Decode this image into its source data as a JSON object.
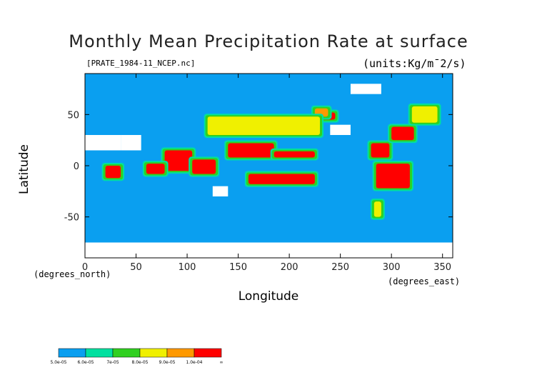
{
  "chart_data": {
    "type": "heatmap",
    "title": "Monthly Mean Precipitation Rate at surface",
    "subtitle": "[PRATE_1984-11_NCEP.nc]",
    "units": "(units:Kg/m¯2/s)",
    "xlabel": "Longitude",
    "ylabel": "Latitude",
    "x_unit": "(degrees_east)",
    "y_unit": "(degrees_north)",
    "xlim": [
      0,
      360
    ],
    "ylim": [
      -90,
      90
    ],
    "x_ticks": [
      0,
      50,
      100,
      150,
      200,
      250,
      300,
      350
    ],
    "y_ticks": [
      -50,
      0,
      50
    ],
    "colorbar": {
      "levels": [
        "5.0e-05",
        "6.0e-05",
        "7e-05",
        "8.0e-05",
        "9.0e-05",
        "1.0e-04",
        "∞"
      ],
      "colors": [
        "#0a9ff0",
        "#00e0a0",
        "#30d020",
        "#f0f000",
        "#ff9900",
        "#ff0000"
      ]
    },
    "background_color": "#0a9ff0",
    "missing_color": "#ffffff",
    "regions": [
      {
        "level": 5,
        "lon": [
          140,
          185
        ],
        "lat": [
          8,
          22
        ]
      },
      {
        "level": 5,
        "lon": [
          185,
          225
        ],
        "lat": [
          8,
          14
        ]
      },
      {
        "level": 5,
        "lon": [
          160,
          225
        ],
        "lat": [
          -18,
          -8
        ]
      },
      {
        "level": 5,
        "lon": [
          78,
          105
        ],
        "lat": [
          -5,
          15
        ]
      },
      {
        "level": 5,
        "lon": [
          60,
          78
        ],
        "lat": [
          -8,
          2
        ]
      },
      {
        "level": 5,
        "lon": [
          105,
          128
        ],
        "lat": [
          -8,
          6
        ]
      },
      {
        "level": 5,
        "lon": [
          20,
          35
        ],
        "lat": [
          -12,
          0
        ]
      },
      {
        "level": 5,
        "lon": [
          285,
          318
        ],
        "lat": [
          -22,
          2
        ]
      },
      {
        "level": 5,
        "lon": [
          280,
          298
        ],
        "lat": [
          8,
          22
        ]
      },
      {
        "level": 5,
        "lon": [
          300,
          322
        ],
        "lat": [
          25,
          38
        ]
      },
      {
        "level": 5,
        "lon": [
          230,
          245
        ],
        "lat": [
          45,
          52
        ]
      },
      {
        "level": 4,
        "lon": [
          225,
          238
        ],
        "lat": [
          48,
          56
        ]
      },
      {
        "level": 3,
        "lon": [
          120,
          230
        ],
        "lat": [
          30,
          48
        ]
      },
      {
        "level": 3,
        "lon": [
          320,
          345
        ],
        "lat": [
          42,
          58
        ]
      },
      {
        "level": 3,
        "lon": [
          283,
          290
        ],
        "lat": [
          -50,
          -35
        ]
      }
    ],
    "missing_regions": [
      {
        "lon": [
          0,
          35
        ],
        "lat": [
          15,
          30
        ]
      },
      {
        "lon": [
          35,
          55
        ],
        "lat": [
          15,
          30
        ]
      },
      {
        "lon": [
          125,
          140
        ],
        "lat": [
          -30,
          -20
        ]
      },
      {
        "lon": [
          240,
          260
        ],
        "lat": [
          30,
          40
        ]
      },
      {
        "lon": [
          0,
          360
        ],
        "lat": [
          -90,
          -75
        ]
      },
      {
        "lon": [
          260,
          290
        ],
        "lat": [
          70,
          80
        ]
      }
    ]
  }
}
